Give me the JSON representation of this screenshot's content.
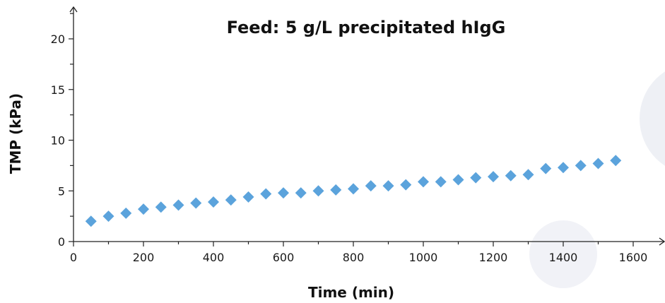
{
  "chart_data": {
    "type": "scatter",
    "title": "Feed: 5 g/L precipitated hIgG",
    "xlabel": "Time (min)",
    "ylabel": "TMP (kPa)",
    "xlim": [
      0,
      1700
    ],
    "ylim": [
      0,
      22
    ],
    "x_ticks": [
      0,
      200,
      400,
      600,
      800,
      1000,
      1200,
      1400,
      1600
    ],
    "x_tick_labels": [
      "0",
      "200",
      "400",
      "600",
      "800",
      "1000",
      "1200",
      "1400",
      "1600"
    ],
    "y_ticks": [
      0,
      5,
      10,
      15,
      20
    ],
    "y_tick_labels": [
      "0",
      "5",
      "10",
      "15",
      "20"
    ],
    "grid": false,
    "legend": "none",
    "marker": "diamond",
    "marker_color": "#5ba3dc",
    "series": [
      {
        "x": [
          50,
          100,
          150,
          200,
          250,
          300,
          350,
          400,
          450,
          500,
          550,
          600,
          650,
          700,
          750,
          800,
          850,
          900,
          950,
          1000,
          1050,
          1100,
          1150,
          1200,
          1250,
          1300,
          1350,
          1400,
          1450,
          1500,
          1550
        ],
        "y": [
          2.0,
          2.5,
          2.8,
          3.2,
          3.4,
          3.6,
          3.8,
          3.9,
          4.1,
          4.4,
          4.7,
          4.8,
          4.8,
          5.0,
          5.1,
          5.2,
          5.5,
          5.5,
          5.6,
          5.9,
          5.9,
          6.1,
          6.3,
          6.4,
          6.5,
          6.6,
          7.2,
          7.3,
          7.5,
          7.7,
          8.0
        ]
      }
    ]
  }
}
